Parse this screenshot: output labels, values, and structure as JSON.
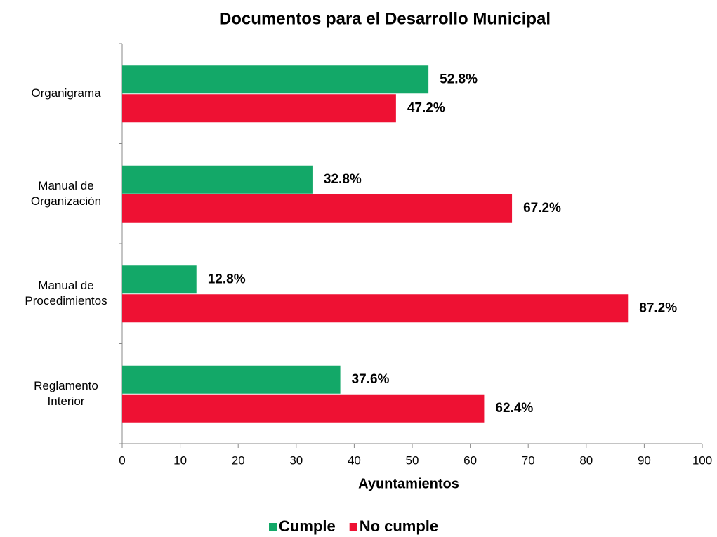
{
  "chart_data": {
    "type": "barh",
    "title": "Documentos para el Desarrollo Municipal",
    "xlabel": "Ayuntamientos",
    "categories": [
      "Organigrama",
      "Manual de Organización",
      "Manual de Procedimientos",
      "Reglamento Interior"
    ],
    "series": [
      {
        "name": "Cumple",
        "color": "#13a868",
        "values": [
          52.8,
          32.8,
          12.8,
          37.6
        ],
        "value_labels": [
          "52.8%",
          "32.8%",
          "12.8%",
          "37.6%"
        ]
      },
      {
        "name": "No cumple",
        "color": "#ee1133",
        "values": [
          47.2,
          67.2,
          87.2,
          62.4
        ],
        "value_labels": [
          "47.2%",
          "67.2%",
          "87.2%",
          "62.4%"
        ]
      }
    ],
    "xlim": [
      0,
      100
    ],
    "xticks": [
      0,
      10,
      20,
      30,
      40,
      50,
      60,
      70,
      80,
      90,
      100
    ],
    "legend": "bottom"
  }
}
